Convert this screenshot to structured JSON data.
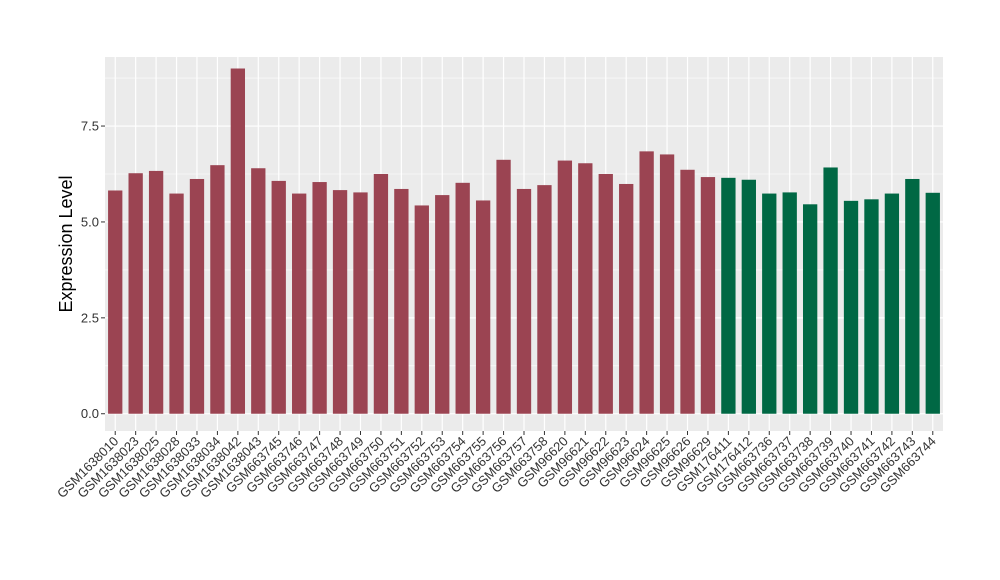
{
  "chart_data": {
    "type": "bar",
    "title": "",
    "xlabel": "",
    "ylabel": "Expression Level",
    "ylim": [
      -0.45,
      9.3
    ],
    "yticks": [
      0.0,
      2.5,
      5.0,
      7.5
    ],
    "ytick_labels": [
      "0.0",
      "2.5",
      "5.0",
      "7.5"
    ],
    "grid": true,
    "legend": "none",
    "background": "#ebebeb",
    "categories": [
      "GSM1638010",
      "GSM1638023",
      "GSM1638025",
      "GSM1638028",
      "GSM1638033",
      "GSM1638034",
      "GSM1638042",
      "GSM1638043",
      "GSM663745",
      "GSM663746",
      "GSM663747",
      "GSM663748",
      "GSM663749",
      "GSM663750",
      "GSM663751",
      "GSM663752",
      "GSM663753",
      "GSM663754",
      "GSM663755",
      "GSM663756",
      "GSM663757",
      "GSM663758",
      "GSM96620",
      "GSM96621",
      "GSM96622",
      "GSM96623",
      "GSM96624",
      "GSM96625",
      "GSM96626",
      "GSM96629",
      "GSM176411",
      "GSM176412",
      "GSM663736",
      "GSM663737",
      "GSM663738",
      "GSM663739",
      "GSM663740",
      "GSM663741",
      "GSM663742",
      "GSM663743",
      "GSM663744"
    ],
    "values": [
      5.82,
      6.27,
      6.33,
      5.74,
      6.12,
      6.48,
      9.0,
      6.4,
      6.07,
      5.74,
      6.04,
      5.83,
      5.77,
      6.25,
      5.86,
      5.43,
      5.7,
      6.02,
      5.56,
      6.62,
      5.86,
      5.96,
      6.6,
      6.53,
      6.25,
      5.99,
      6.84,
      6.76,
      6.36,
      6.17,
      6.15,
      6.1,
      5.74,
      5.77,
      5.46,
      6.42,
      5.55,
      5.59,
      5.74,
      6.12,
      5.76
    ],
    "group_split_index": 30,
    "colors": {
      "group_a": "#9b4452",
      "group_b": "#006844"
    }
  }
}
